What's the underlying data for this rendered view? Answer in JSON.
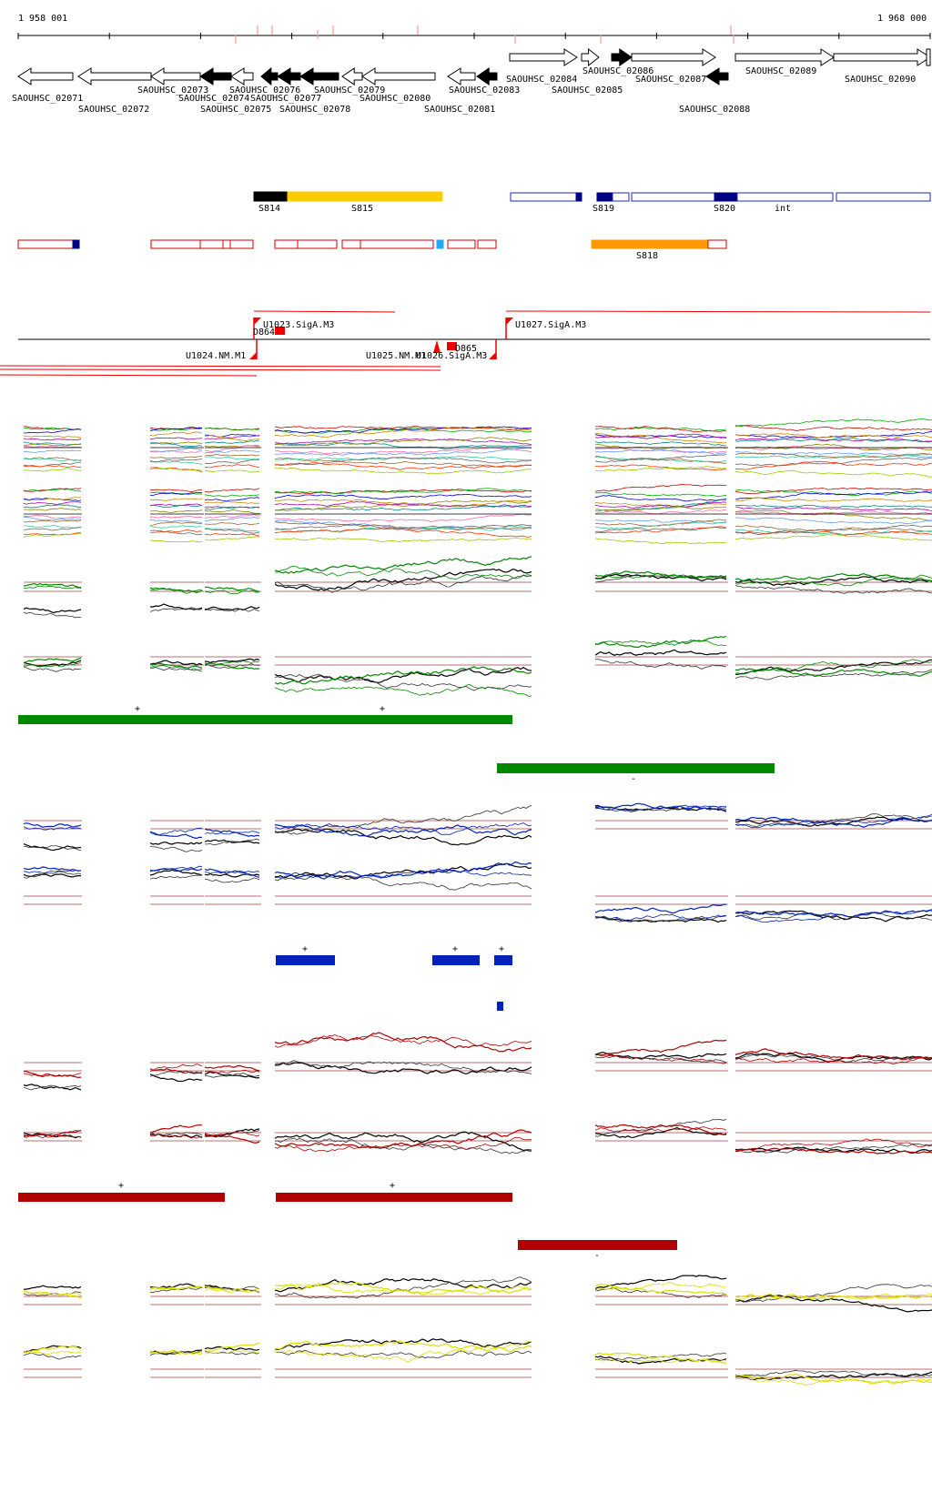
{
  "coords": {
    "start": "1 958 001",
    "end": "1 968 000"
  },
  "genes": [
    {
      "label": "SAOUHSC_02071"
    },
    {
      "label": "SAOUHSC_02072"
    },
    {
      "label": "SAOUHSC_02073"
    },
    {
      "label": "SAOUHSC_02074"
    },
    {
      "label": "SAOUHSC_02075"
    },
    {
      "label": "SAOUHSC_02076"
    },
    {
      "label": "SAOUHSC_02077"
    },
    {
      "label": "SAOUHSC_02078"
    },
    {
      "label": "SAOUHSC_02079"
    },
    {
      "label": "SAOUHSC_02080"
    },
    {
      "label": "SAOUHSC_02081"
    },
    {
      "label": "SAOUHSC_02083"
    },
    {
      "label": "SAOUHSC_02084"
    },
    {
      "label": "SAOUHSC_02085"
    },
    {
      "label": "SAOUHSC_02086"
    },
    {
      "label": "SAOUHSC_02087"
    },
    {
      "label": "SAOUHSC_02088"
    },
    {
      "label": "SAOUHSC_02089"
    },
    {
      "label": "SAOUHSC_02090"
    }
  ],
  "segments": [
    {
      "label": "S814"
    },
    {
      "label": "S815"
    },
    {
      "label": "S819"
    },
    {
      "label": "S820"
    },
    {
      "label": "int"
    },
    {
      "label": "S818"
    }
  ],
  "promoters": [
    {
      "label": "U1023.SigA.M3"
    },
    {
      "label": "D864"
    },
    {
      "label": "U1027.SigA.M3"
    },
    {
      "label": "U1024.NM.M1"
    },
    {
      "label": "U1025.NM.M1"
    },
    {
      "label": "U1026.SigA.M3"
    },
    {
      "label": "D865"
    }
  ],
  "signs": {
    "plus": "+",
    "minus": "-"
  },
  "colors": {
    "green": "#008800",
    "blue": "#0022bb",
    "red": "#b00000",
    "yellow": "#dddd00",
    "segment_black": "#000000",
    "segment_gold": "#ffcc00",
    "segment_orange": "#ff9900",
    "segment_navy": "#000080",
    "segment_cyan": "#22aaff",
    "threshold": "#a04040"
  }
}
